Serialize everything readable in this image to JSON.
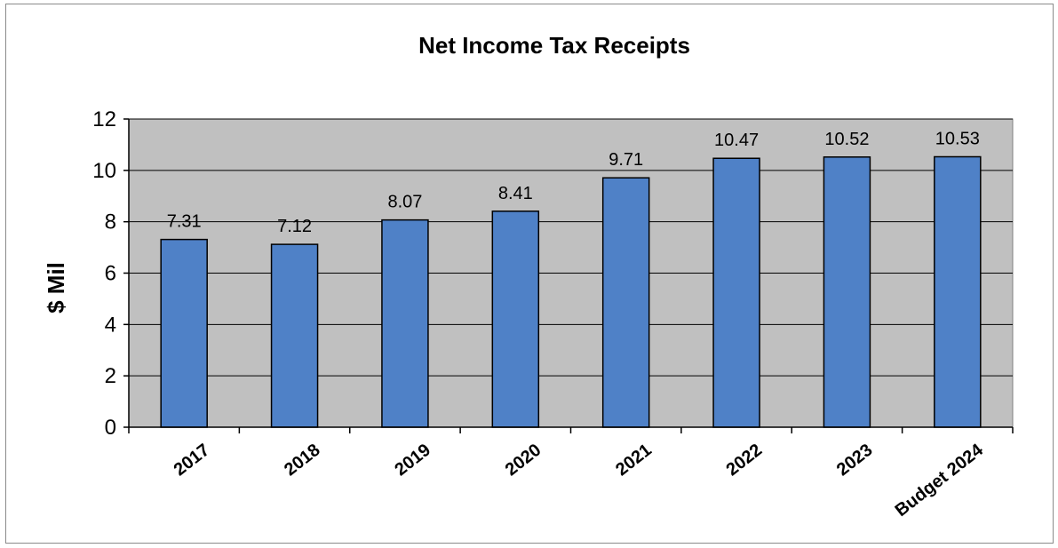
{
  "chart_data": {
    "type": "bar",
    "title": "Net Income Tax Receipts",
    "xlabel": "",
    "ylabel": "$ Mil",
    "categories": [
      "2017",
      "2018",
      "2019",
      "2020",
      "2021",
      "2022",
      "2023",
      "Budget 2024"
    ],
    "values": [
      7.31,
      7.12,
      8.07,
      8.41,
      9.71,
      10.47,
      10.52,
      10.53
    ],
    "data_labels": [
      "7.31",
      "7.12",
      "8.07",
      "8.41",
      "9.71",
      "10.47",
      "10.52",
      "10.53"
    ],
    "ylim": [
      0,
      12
    ],
    "yticks": [
      0,
      2,
      4,
      6,
      8,
      10,
      12
    ],
    "ytick_labels": [
      "0",
      "2",
      "4",
      "6",
      "8",
      "10",
      "12"
    ],
    "grid": true,
    "legend": "none",
    "colors": {
      "bar_fill": "#4f81c7",
      "bar_stroke": "#000000",
      "plot_background": "#c0c0c0",
      "gridline": "#000000"
    }
  }
}
